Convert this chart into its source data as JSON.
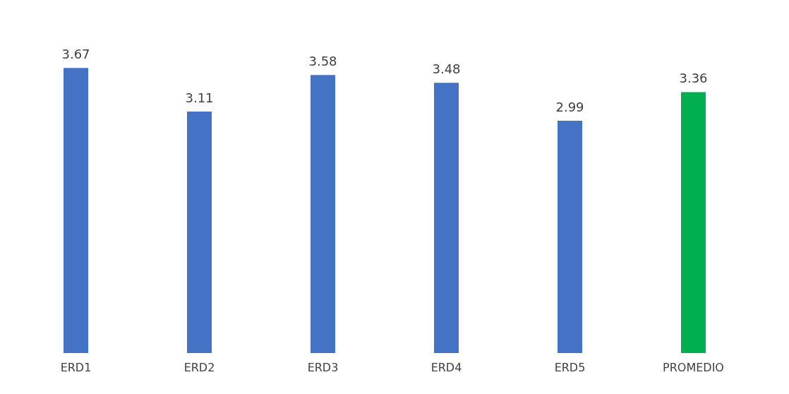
{
  "chart_data": {
    "type": "bar",
    "categories": [
      "ERD1",
      "ERD2",
      "ERD3",
      "ERD4",
      "ERD5",
      "PROMEDIO"
    ],
    "values": [
      3.67,
      3.11,
      3.58,
      3.48,
      2.99,
      3.36
    ],
    "colors": [
      "#4472c4",
      "#4472c4",
      "#4472c4",
      "#4472c4",
      "#4472c4",
      "#00b050"
    ],
    "data_labels": true
  }
}
